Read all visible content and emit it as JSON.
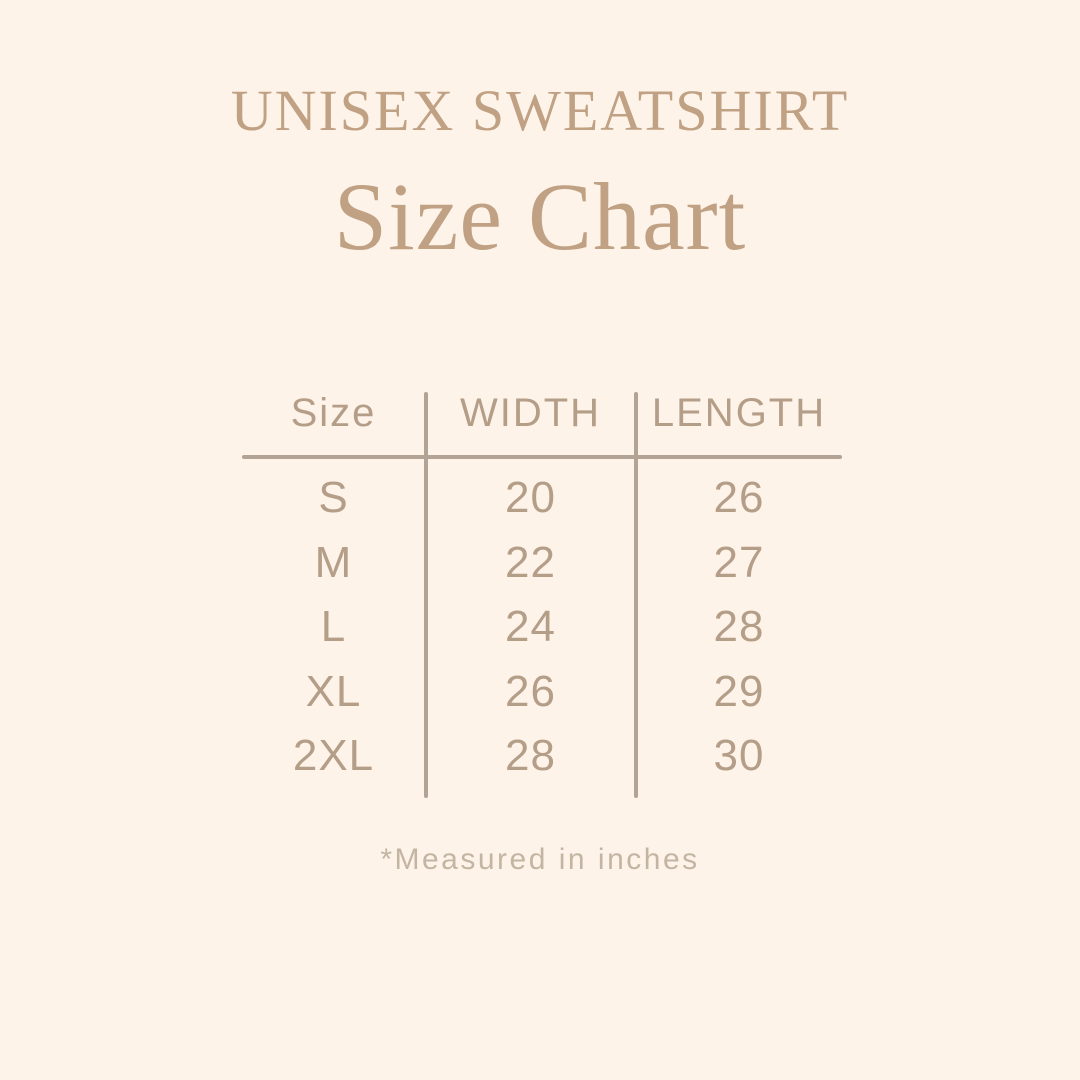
{
  "header": {
    "title": "UNISEX SWEATSHIRT",
    "subtitle": "Size Chart"
  },
  "table": {
    "columns": [
      "Size",
      "WIDTH",
      "LENGTH"
    ],
    "rows": [
      {
        "size": "S",
        "width": "20",
        "length": "26"
      },
      {
        "size": "M",
        "width": "22",
        "length": "27"
      },
      {
        "size": "L",
        "width": "24",
        "length": "28"
      },
      {
        "size": "XL",
        "width": "26",
        "length": "29"
      },
      {
        "size": "2XL",
        "width": "28",
        "length": "30"
      }
    ]
  },
  "footnote": "*Measured in inches",
  "colors": {
    "background": "#fdf3e9",
    "title_text": "#c0a183",
    "table_text": "#b59e88",
    "rule": "#b2a394",
    "footnote_text": "#c4b5a3"
  },
  "chart_data": {
    "type": "table",
    "title": "UNISEX SWEATSHIRT Size Chart",
    "columns": [
      "Size",
      "WIDTH",
      "LENGTH"
    ],
    "rows": [
      [
        "S",
        20,
        26
      ],
      [
        "M",
        22,
        27
      ],
      [
        "L",
        24,
        28
      ],
      [
        "XL",
        26,
        29
      ],
      [
        "2XL",
        28,
        30
      ]
    ],
    "units": "inches",
    "footnote": "*Measured in inches"
  }
}
